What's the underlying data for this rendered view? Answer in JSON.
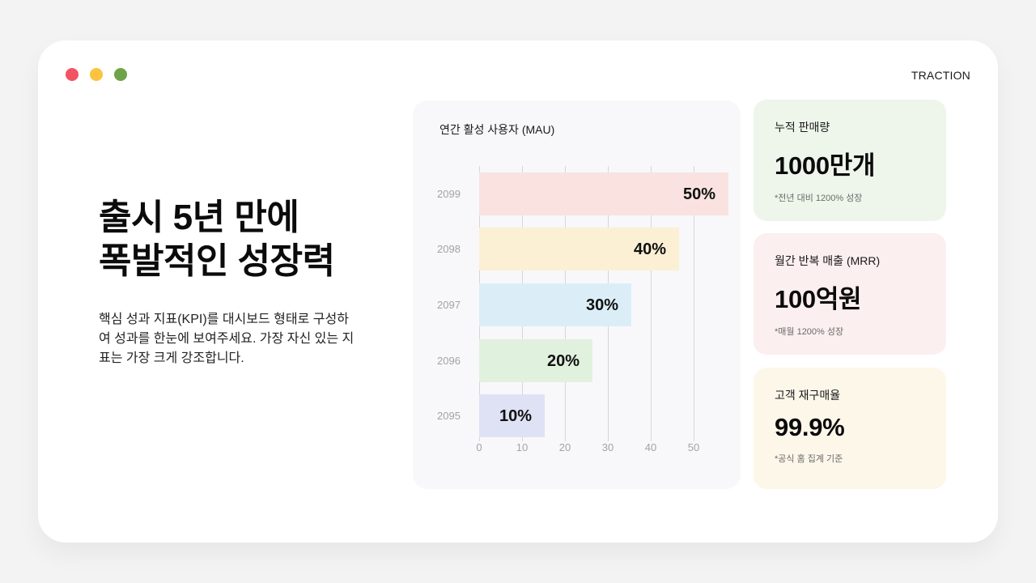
{
  "window": {
    "traffic_lights": [
      {
        "name": "close",
        "color": "#f25461"
      },
      {
        "name": "minimize",
        "color": "#fdc33f"
      },
      {
        "name": "maximize",
        "color": "#6ea34a"
      }
    ],
    "section_tag": "TRACTION"
  },
  "hero": {
    "headline_lines": [
      "출시 5년 만에",
      "폭발적인 성장력"
    ],
    "description": "핵심 성과 지표(KPI)를 대시보드 형태로 구성하여 성과를 한눈에 보여주세요. 가장 자신 있는 지표는 가장 크게 강조합니다."
  },
  "chart_data": {
    "type": "bar",
    "orientation": "horizontal",
    "title": "연간 활성 사용자 (MAU)",
    "xlabel": "",
    "ylabel": "",
    "categories": [
      "2099",
      "2098",
      "2097",
      "2096",
      "2095"
    ],
    "values": [
      50,
      40,
      30,
      20,
      10
    ],
    "value_labels": [
      "50%",
      "40%",
      "30%",
      "20%",
      "10%"
    ],
    "bar_colors": [
      "#f9e2e0",
      "#fbf0d4",
      "#dbeef8",
      "#e0f1de",
      "#dfe2f5"
    ],
    "x_ticks": [
      "0",
      "10",
      "20",
      "30",
      "40",
      "50"
    ],
    "xlim": [
      0,
      50
    ],
    "grid": true,
    "legend": null
  },
  "stats": [
    {
      "label": "누적 판매량",
      "value": "1000만개",
      "note": "*전년 대비 1200% 성장",
      "bg": "#eef6ec"
    },
    {
      "label": "월간 반복 매출 (MRR)",
      "value": "100억원",
      "note": "*매월 1200% 성장",
      "bg": "#fcefef"
    },
    {
      "label": "고객 재구매율",
      "value": "99.9%",
      "note": "*공식 홈 집계 기준",
      "bg": "#fdf7ea"
    }
  ]
}
